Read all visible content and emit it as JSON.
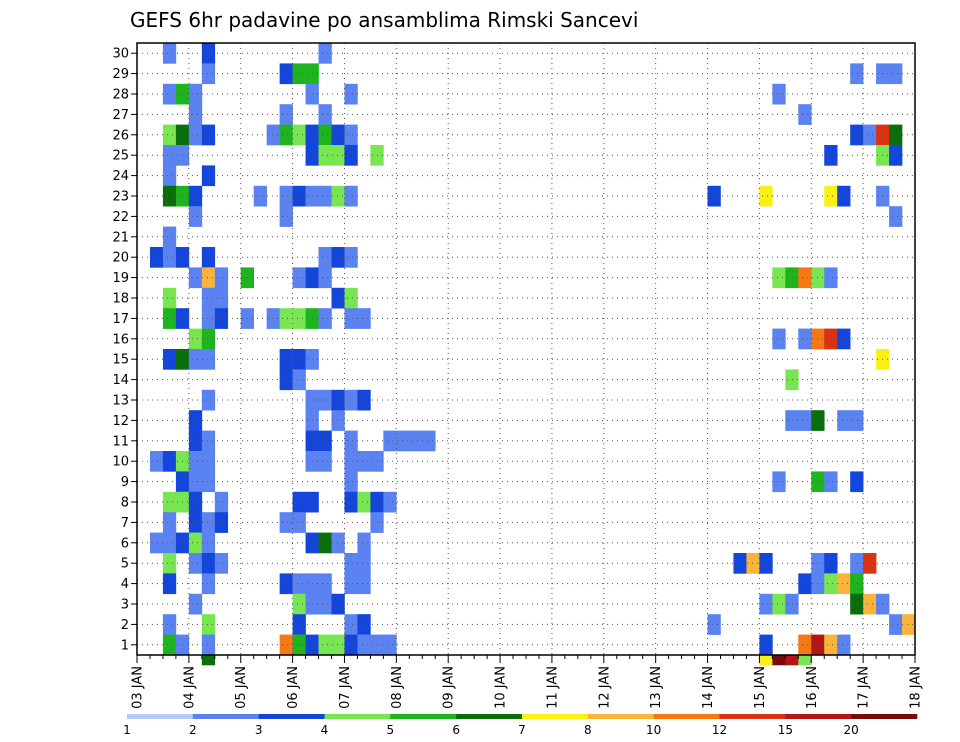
{
  "chart_data": {
    "type": "heatmap",
    "title": "GEFS 6hr padavine po ansamblima Rimski Sancevi",
    "xlabel": "",
    "ylabel": "",
    "x_ticks": [
      "03 JAN",
      "04 JAN",
      "05 JAN",
      "06 JAN",
      "07 JAN",
      "08 JAN",
      "09 JAN",
      "10 JAN",
      "11 JAN",
      "12 JAN",
      "13 JAN",
      "14 JAN",
      "15 JAN",
      "16 JAN",
      "17 JAN",
      "18 JAN"
    ],
    "y_ticks": [
      "1",
      "2",
      "3",
      "4",
      "5",
      "6",
      "7",
      "8",
      "9",
      "10",
      "11",
      "12",
      "13",
      "14",
      "15",
      "16",
      "17",
      "18",
      "19",
      "20",
      "21",
      "22",
      "23",
      "24",
      "25",
      "26",
      "27",
      "28",
      "29",
      "30"
    ],
    "x_step_hours": 6,
    "ylim": [
      1,
      30
    ],
    "grid": true,
    "legend_placement": "bottom",
    "legend": {
      "labels": [
        "1",
        "2",
        "3",
        "4",
        "5",
        "6",
        "7",
        "8",
        "10",
        "12",
        "15",
        "20"
      ],
      "colors": [
        "#b4c8fa",
        "#5a82f0",
        "#1446dc",
        "#78e650",
        "#1eb41e",
        "#0a6e0a",
        "#faf014",
        "#fab43c",
        "#f57814",
        "#dc3214",
        "#b41414",
        "#780a0a"
      ]
    },
    "cells": [
      [
        30,
        2,
        1
      ],
      [
        30,
        5,
        2
      ],
      [
        30,
        14,
        1
      ],
      [
        29,
        5,
        1
      ],
      [
        29,
        11,
        2
      ],
      [
        29,
        12,
        4
      ],
      [
        29,
        13,
        4
      ],
      [
        29,
        55,
        1
      ],
      [
        29,
        57,
        1
      ],
      [
        29,
        58,
        1
      ],
      [
        28,
        2,
        1
      ],
      [
        28,
        3,
        4
      ],
      [
        28,
        4,
        1
      ],
      [
        28,
        13,
        1
      ],
      [
        28,
        16,
        1
      ],
      [
        28,
        49,
        1
      ],
      [
        27,
        4,
        1
      ],
      [
        27,
        11,
        1
      ],
      [
        27,
        14,
        1
      ],
      [
        27,
        51,
        1
      ],
      [
        26,
        2,
        3
      ],
      [
        26,
        3,
        5
      ],
      [
        26,
        4,
        1
      ],
      [
        26,
        5,
        2
      ],
      [
        26,
        10,
        1
      ],
      [
        26,
        11,
        4
      ],
      [
        26,
        12,
        3
      ],
      [
        26,
        13,
        2
      ],
      [
        26,
        14,
        4
      ],
      [
        26,
        15,
        2
      ],
      [
        26,
        16,
        1
      ],
      [
        26,
        55,
        2
      ],
      [
        26,
        56,
        1
      ],
      [
        26,
        57,
        9
      ],
      [
        26,
        58,
        5
      ],
      [
        25,
        2,
        1
      ],
      [
        25,
        3,
        1
      ],
      [
        25,
        13,
        2
      ],
      [
        25,
        14,
        3
      ],
      [
        25,
        15,
        3
      ],
      [
        25,
        16,
        2
      ],
      [
        25,
        18,
        3
      ],
      [
        25,
        53,
        2
      ],
      [
        25,
        57,
        3
      ],
      [
        25,
        58,
        2
      ],
      [
        24,
        2,
        1
      ],
      [
        24,
        5,
        2
      ],
      [
        23,
        2,
        5
      ],
      [
        23,
        3,
        4
      ],
      [
        23,
        4,
        2
      ],
      [
        23,
        9,
        1
      ],
      [
        23,
        11,
        1
      ],
      [
        23,
        12,
        2
      ],
      [
        23,
        13,
        1
      ],
      [
        23,
        14,
        1
      ],
      [
        23,
        15,
        3
      ],
      [
        23,
        16,
        1
      ],
      [
        23,
        44,
        2
      ],
      [
        23,
        48,
        6
      ],
      [
        23,
        53,
        6
      ],
      [
        23,
        54,
        2
      ],
      [
        23,
        57,
        1
      ],
      [
        22,
        4,
        1
      ],
      [
        22,
        11,
        1
      ],
      [
        22,
        58,
        1
      ],
      [
        21,
        2,
        1
      ],
      [
        20,
        1,
        2
      ],
      [
        20,
        2,
        1
      ],
      [
        20,
        3,
        2
      ],
      [
        20,
        5,
        2
      ],
      [
        20,
        14,
        1
      ],
      [
        20,
        15,
        2
      ],
      [
        20,
        16,
        1
      ],
      [
        19,
        4,
        1
      ],
      [
        19,
        5,
        7
      ],
      [
        19,
        6,
        1
      ],
      [
        19,
        8,
        4
      ],
      [
        19,
        12,
        1
      ],
      [
        19,
        13,
        2
      ],
      [
        19,
        14,
        1
      ],
      [
        19,
        49,
        3
      ],
      [
        19,
        50,
        4
      ],
      [
        19,
        51,
        8
      ],
      [
        19,
        52,
        3
      ],
      [
        19,
        53,
        1
      ],
      [
        18,
        2,
        3
      ],
      [
        18,
        5,
        1
      ],
      [
        18,
        6,
        1
      ],
      [
        18,
        15,
        2
      ],
      [
        18,
        16,
        3
      ],
      [
        17,
        2,
        4
      ],
      [
        17,
        3,
        2
      ],
      [
        17,
        5,
        1
      ],
      [
        17,
        6,
        2
      ],
      [
        17,
        8,
        1
      ],
      [
        17,
        10,
        1
      ],
      [
        17,
        11,
        3
      ],
      [
        17,
        12,
        3
      ],
      [
        17,
        13,
        4
      ],
      [
        17,
        14,
        1
      ],
      [
        17,
        16,
        1
      ],
      [
        17,
        17,
        1
      ],
      [
        16,
        4,
        3
      ],
      [
        16,
        5,
        4
      ],
      [
        16,
        49,
        1
      ],
      [
        16,
        51,
        1
      ],
      [
        16,
        52,
        8
      ],
      [
        16,
        53,
        9
      ],
      [
        16,
        54,
        2
      ],
      [
        15,
        2,
        2
      ],
      [
        15,
        3,
        5
      ],
      [
        15,
        4,
        1
      ],
      [
        15,
        5,
        1
      ],
      [
        15,
        11,
        2
      ],
      [
        15,
        12,
        2
      ],
      [
        15,
        13,
        1
      ],
      [
        15,
        57,
        6
      ],
      [
        14,
        11,
        2
      ],
      [
        14,
        12,
        1
      ],
      [
        14,
        50,
        3
      ],
      [
        13,
        5,
        1
      ],
      [
        13,
        13,
        1
      ],
      [
        13,
        14,
        1
      ],
      [
        13,
        15,
        2
      ],
      [
        13,
        16,
        1
      ],
      [
        13,
        17,
        2
      ],
      [
        12,
        4,
        2
      ],
      [
        12,
        13,
        1
      ],
      [
        12,
        15,
        1
      ],
      [
        12,
        50,
        1
      ],
      [
        12,
        51,
        1
      ],
      [
        12,
        52,
        5
      ],
      [
        12,
        54,
        1
      ],
      [
        12,
        55,
        1
      ],
      [
        11,
        4,
        2
      ],
      [
        11,
        5,
        1
      ],
      [
        11,
        13,
        2
      ],
      [
        11,
        14,
        2
      ],
      [
        11,
        16,
        1
      ],
      [
        11,
        19,
        1
      ],
      [
        11,
        20,
        1
      ],
      [
        11,
        21,
        1
      ],
      [
        11,
        22,
        1
      ],
      [
        10,
        1,
        1
      ],
      [
        10,
        2,
        2
      ],
      [
        10,
        3,
        3
      ],
      [
        10,
        4,
        1
      ],
      [
        10,
        5,
        1
      ],
      [
        10,
        13,
        1
      ],
      [
        10,
        14,
        1
      ],
      [
        10,
        16,
        1
      ],
      [
        10,
        17,
        1
      ],
      [
        10,
        18,
        1
      ],
      [
        9,
        3,
        2
      ],
      [
        9,
        4,
        1
      ],
      [
        9,
        5,
        1
      ],
      [
        9,
        16,
        1
      ],
      [
        9,
        49,
        1
      ],
      [
        9,
        52,
        4
      ],
      [
        9,
        53,
        1
      ],
      [
        9,
        55,
        2
      ],
      [
        8,
        2,
        3
      ],
      [
        8,
        3,
        3
      ],
      [
        8,
        4,
        2
      ],
      [
        8,
        6,
        1
      ],
      [
        8,
        12,
        2
      ],
      [
        8,
        13,
        2
      ],
      [
        8,
        16,
        2
      ],
      [
        8,
        17,
        3
      ],
      [
        8,
        18,
        2
      ],
      [
        8,
        19,
        1
      ],
      [
        7,
        2,
        1
      ],
      [
        7,
        4,
        2
      ],
      [
        7,
        5,
        1
      ],
      [
        7,
        6,
        2
      ],
      [
        7,
        11,
        1
      ],
      [
        7,
        12,
        1
      ],
      [
        7,
        18,
        1
      ],
      [
        6,
        1,
        1
      ],
      [
        6,
        2,
        1
      ],
      [
        6,
        3,
        2
      ],
      [
        6,
        4,
        3
      ],
      [
        6,
        5,
        1
      ],
      [
        6,
        13,
        2
      ],
      [
        6,
        14,
        5
      ],
      [
        6,
        15,
        1
      ],
      [
        6,
        17,
        1
      ],
      [
        5,
        2,
        3
      ],
      [
        5,
        4,
        1
      ],
      [
        5,
        5,
        2
      ],
      [
        5,
        6,
        1
      ],
      [
        5,
        16,
        1
      ],
      [
        5,
        17,
        1
      ],
      [
        5,
        46,
        2
      ],
      [
        5,
        47,
        7
      ],
      [
        5,
        48,
        2
      ],
      [
        5,
        52,
        1
      ],
      [
        5,
        53,
        2
      ],
      [
        5,
        55,
        1
      ],
      [
        5,
        56,
        9
      ],
      [
        4,
        2,
        2
      ],
      [
        4,
        5,
        1
      ],
      [
        4,
        11,
        2
      ],
      [
        4,
        12,
        1
      ],
      [
        4,
        13,
        1
      ],
      [
        4,
        14,
        1
      ],
      [
        4,
        16,
        1
      ],
      [
        4,
        17,
        1
      ],
      [
        4,
        51,
        2
      ],
      [
        4,
        52,
        1
      ],
      [
        4,
        53,
        3
      ],
      [
        4,
        54,
        7
      ],
      [
        4,
        55,
        4
      ],
      [
        3,
        4,
        1
      ],
      [
        3,
        12,
        3
      ],
      [
        3,
        13,
        1
      ],
      [
        3,
        14,
        1
      ],
      [
        3,
        15,
        2
      ],
      [
        3,
        48,
        1
      ],
      [
        3,
        49,
        3
      ],
      [
        3,
        50,
        1
      ],
      [
        3,
        55,
        5
      ],
      [
        3,
        56,
        7
      ],
      [
        3,
        57,
        1
      ],
      [
        2,
        2,
        1
      ],
      [
        2,
        5,
        3
      ],
      [
        2,
        12,
        2
      ],
      [
        2,
        16,
        1
      ],
      [
        2,
        17,
        2
      ],
      [
        2,
        44,
        1
      ],
      [
        2,
        58,
        1
      ],
      [
        2,
        59,
        7
      ],
      [
        1,
        2,
        4
      ],
      [
        1,
        3,
        1
      ],
      [
        1,
        5,
        1
      ],
      [
        1,
        11,
        8
      ],
      [
        1,
        12,
        4
      ],
      [
        1,
        13,
        2
      ],
      [
        1,
        14,
        3
      ],
      [
        1,
        15,
        3
      ],
      [
        1,
        16,
        2
      ],
      [
        1,
        17,
        1
      ],
      [
        1,
        18,
        1
      ],
      [
        1,
        19,
        1
      ],
      [
        1,
        48,
        2
      ],
      [
        1,
        51,
        8
      ],
      [
        1,
        52,
        10
      ],
      [
        1,
        53,
        7
      ],
      [
        1,
        54,
        1
      ],
      [
        0,
        5,
        5
      ],
      [
        0,
        48,
        6
      ],
      [
        0,
        49,
        11
      ],
      [
        0,
        50,
        10
      ],
      [
        0,
        51,
        3
      ]
    ]
  }
}
